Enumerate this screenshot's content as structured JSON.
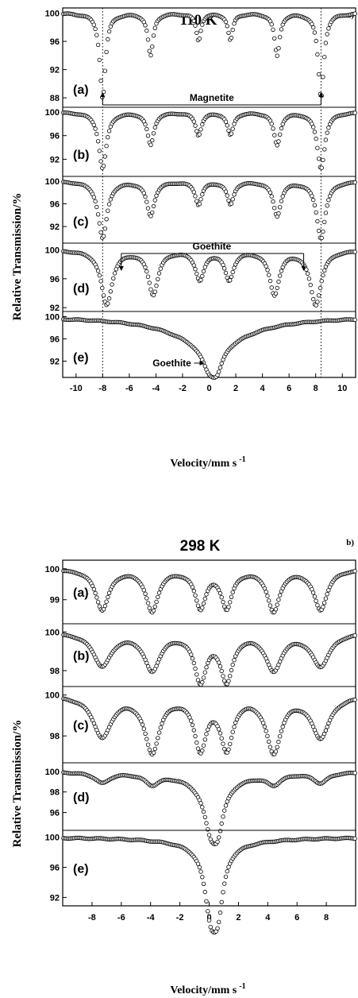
{
  "chart_data": [
    {
      "type": "scatter",
      "title": "110 K",
      "panel_letter": "a)",
      "ylabel": "Relative Transmission/%",
      "xlabel": "Velocity/mm s",
      "xlabel_sup": "-1",
      "xlim": [
        -11,
        11
      ],
      "xticks": [
        -10,
        -8,
        -6,
        -4,
        -2,
        0,
        2,
        4,
        6,
        8,
        10
      ],
      "reference_lines_x": [
        -8,
        8.4
      ],
      "series": [
        {
          "name": "(a)",
          "ylim": [
            87,
            100.4
          ],
          "yticks": [
            88,
            92,
            96,
            100
          ],
          "profile": {
            "base": 100,
            "broad": null,
            "lines": [
              {
                "x": -8.0,
                "depth": 12.0,
                "width": 0.26
              },
              {
                "x": -4.4,
                "depth": 6.0,
                "width": 0.24
              },
              {
                "x": -0.8,
                "depth": 3.8,
                "width": 0.22
              },
              {
                "x": 1.6,
                "depth": 3.8,
                "width": 0.22
              },
              {
                "x": 5.1,
                "depth": 6.0,
                "width": 0.24
              },
              {
                "x": 8.4,
                "depth": 12.0,
                "width": 0.26
              }
            ]
          }
        },
        {
          "name": "(b)",
          "ylim": [
            89.5,
            100.4
          ],
          "yticks": [
            92,
            96,
            100
          ],
          "profile": {
            "base": 100,
            "broad": null,
            "lines": [
              {
                "x": -8.0,
                "depth": 9.5,
                "width": 0.35
              },
              {
                "x": -4.4,
                "depth": 5.5,
                "width": 0.3
              },
              {
                "x": -0.8,
                "depth": 3.8,
                "width": 0.28
              },
              {
                "x": 1.6,
                "depth": 3.8,
                "width": 0.28
              },
              {
                "x": 5.1,
                "depth": 5.5,
                "width": 0.3
              },
              {
                "x": 8.4,
                "depth": 9.5,
                "width": 0.35
              }
            ]
          }
        },
        {
          "name": "(c)",
          "ylim": [
            89.5,
            100.4
          ],
          "yticks": [
            92,
            96,
            100
          ],
          "profile": {
            "base": 100,
            "broad": null,
            "lines": [
              {
                "x": -8.0,
                "depth": 10.0,
                "width": 0.4
              },
              {
                "x": -4.4,
                "depth": 6.0,
                "width": 0.35
              },
              {
                "x": -0.8,
                "depth": 4.0,
                "width": 0.3
              },
              {
                "x": 1.6,
                "depth": 4.0,
                "width": 0.3
              },
              {
                "x": 5.1,
                "depth": 6.0,
                "width": 0.35
              },
              {
                "x": 8.4,
                "depth": 10.0,
                "width": 0.4
              }
            ]
          }
        },
        {
          "name": "(d)",
          "ylim": [
            91.8,
            100.6
          ],
          "yticks": [
            92,
            96,
            100
          ],
          "profile": {
            "base": 100,
            "broad": null,
            "lines": [
              {
                "x": -7.7,
                "depth": 7.5,
                "width": 0.5
              },
              {
                "x": -4.2,
                "depth": 6.0,
                "width": 0.45
              },
              {
                "x": -0.7,
                "depth": 4.0,
                "width": 0.4
              },
              {
                "x": 1.5,
                "depth": 4.0,
                "width": 0.4
              },
              {
                "x": 4.9,
                "depth": 6.0,
                "width": 0.45
              },
              {
                "x": 8.0,
                "depth": 7.5,
                "width": 0.5
              }
            ]
          }
        },
        {
          "name": "(e)",
          "ylim": [
            89.5,
            100.5
          ],
          "yticks": [
            92,
            96,
            100
          ],
          "profile": {
            "base": 100,
            "broad": {
              "x": 0.2,
              "depth": 5.0,
              "width": 3.5
            },
            "lines": [
              {
                "x": 0.0,
                "depth": 4.0,
                "width": 0.65
              },
              {
                "x": 0.6,
                "depth": 3.5,
                "width": 0.5
              }
            ]
          }
        }
      ],
      "annotations": [
        {
          "panel": "(a)",
          "text": "Magnetite",
          "x": 0.2,
          "span": [
            -8.0,
            8.4
          ]
        },
        {
          "panel": "(d)",
          "text": "Goethite",
          "x": 0.2,
          "span": [
            -6.6,
            7.1
          ]
        },
        {
          "panel": "(e)",
          "text": "Goethite",
          "x": -2.8,
          "arrow_to": 0.0
        }
      ],
      "grid": false
    },
    {
      "type": "scatter",
      "title": "298 K",
      "panel_letter": "b)",
      "ylabel": "Relative Transmission/%",
      "xlabel": "Velocity/mm s",
      "xlabel_sup": "-1",
      "xlim": [
        -10,
        10
      ],
      "xticks": [
        -8,
        -6,
        -4,
        -2,
        0,
        2,
        4,
        6,
        8
      ],
      "series": [
        {
          "name": "(a)",
          "ylim": [
            98.3,
            100.2
          ],
          "yticks": [
            99,
            100
          ],
          "profile": {
            "base": 100,
            "broad": null,
            "lines": [
              {
                "x": -7.3,
                "depth": 1.3,
                "width": 0.55
              },
              {
                "x": -3.9,
                "depth": 1.35,
                "width": 0.5
              },
              {
                "x": -0.6,
                "depth": 1.2,
                "width": 0.45
              },
              {
                "x": 1.2,
                "depth": 1.2,
                "width": 0.45
              },
              {
                "x": 4.4,
                "depth": 1.35,
                "width": 0.5
              },
              {
                "x": 7.6,
                "depth": 1.3,
                "width": 0.55
              }
            ]
          }
        },
        {
          "name": "(b)",
          "ylim": [
            97.3,
            100.3
          ],
          "yticks": [
            98,
            100
          ],
          "profile": {
            "base": 100,
            "broad": null,
            "lines": [
              {
                "x": -7.3,
                "depth": 1.7,
                "width": 0.75
              },
              {
                "x": -3.9,
                "depth": 1.9,
                "width": 0.65
              },
              {
                "x": -0.6,
                "depth": 2.4,
                "width": 0.5
              },
              {
                "x": 1.2,
                "depth": 2.4,
                "width": 0.5
              },
              {
                "x": 4.4,
                "depth": 1.9,
                "width": 0.65
              },
              {
                "x": 7.6,
                "depth": 1.7,
                "width": 0.75
              }
            ]
          }
        },
        {
          "name": "(c)",
          "ylim": [
            96.8,
            100.3
          ],
          "yticks": [
            98,
            100
          ],
          "profile": {
            "base": 100,
            "broad": null,
            "lines": [
              {
                "x": -7.3,
                "depth": 2.0,
                "width": 0.75
              },
              {
                "x": -3.9,
                "depth": 2.7,
                "width": 0.6
              },
              {
                "x": -0.6,
                "depth": 2.5,
                "width": 0.5
              },
              {
                "x": 1.2,
                "depth": 2.5,
                "width": 0.5
              },
              {
                "x": 4.4,
                "depth": 2.7,
                "width": 0.6
              },
              {
                "x": 7.6,
                "depth": 2.0,
                "width": 0.75
              }
            ]
          }
        },
        {
          "name": "(d)",
          "ylim": [
            94.5,
            100.6
          ],
          "yticks": [
            96,
            98,
            100
          ],
          "profile": {
            "base": 100,
            "broad": {
              "x": 0.3,
              "depth": 1.3,
              "width": 2.0
            },
            "lines": [
              {
                "x": 0.1,
                "depth": 3.8,
                "width": 0.55
              },
              {
                "x": 0.6,
                "depth": 3.3,
                "width": 0.45
              },
              {
                "x": -7.3,
                "depth": 1.0,
                "width": 0.6
              },
              {
                "x": -3.9,
                "depth": 1.0,
                "width": 0.6
              },
              {
                "x": 4.4,
                "depth": 1.0,
                "width": 0.6
              },
              {
                "x": 7.6,
                "depth": 1.0,
                "width": 0.6
              }
            ]
          }
        },
        {
          "name": "(e)",
          "ylim": [
            91.2,
            100.6
          ],
          "yticks": [
            92,
            96,
            100
          ],
          "profile": {
            "base": 100,
            "broad": {
              "x": 0.3,
              "depth": 1.0,
              "width": 3.0
            },
            "lines": [
              {
                "x": 0.1,
                "depth": 7.8,
                "width": 0.5
              },
              {
                "x": 0.6,
                "depth": 7.0,
                "width": 0.45
              }
            ]
          }
        }
      ],
      "grid": false
    }
  ]
}
